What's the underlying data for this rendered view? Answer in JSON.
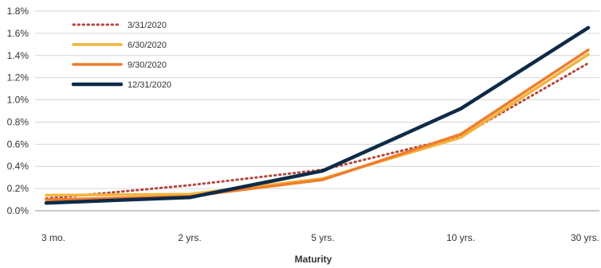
{
  "chart_data": {
    "type": "line",
    "title": "",
    "xlabel": "Maturity",
    "ylabel": "",
    "categories": [
      "3 mo.",
      "2 yrs.",
      "5 yrs.",
      "10 yrs.",
      "30 yrs."
    ],
    "x_positions": [
      0.25,
      2,
      5,
      10,
      30
    ],
    "y_ticks": [
      "0.0%",
      "0.2%",
      "0.4%",
      "0.6%",
      "0.8%",
      "1.0%",
      "1.2%",
      "1.4%",
      "1.6%",
      "1.8%"
    ],
    "ylim": [
      0,
      1.8
    ],
    "grid": true,
    "legend": "top-left",
    "series": [
      {
        "name": "3/31/2020",
        "values": [
          0.11,
          0.23,
          0.37,
          0.67,
          1.33
        ],
        "color": "#b5473f",
        "style": "dotted"
      },
      {
        "name": "6/30/2020",
        "values": [
          0.14,
          0.15,
          0.29,
          0.66,
          1.41
        ],
        "color": "#f2b43c",
        "style": "solid"
      },
      {
        "name": "9/30/2020",
        "values": [
          0.1,
          0.13,
          0.28,
          0.69,
          1.45
        ],
        "color": "#ee7d2d",
        "style": "solid"
      },
      {
        "name": "12/31/2020",
        "values": [
          0.07,
          0.12,
          0.36,
          0.92,
          1.65
        ],
        "color": "#0e2a47",
        "style": "solid"
      }
    ]
  }
}
